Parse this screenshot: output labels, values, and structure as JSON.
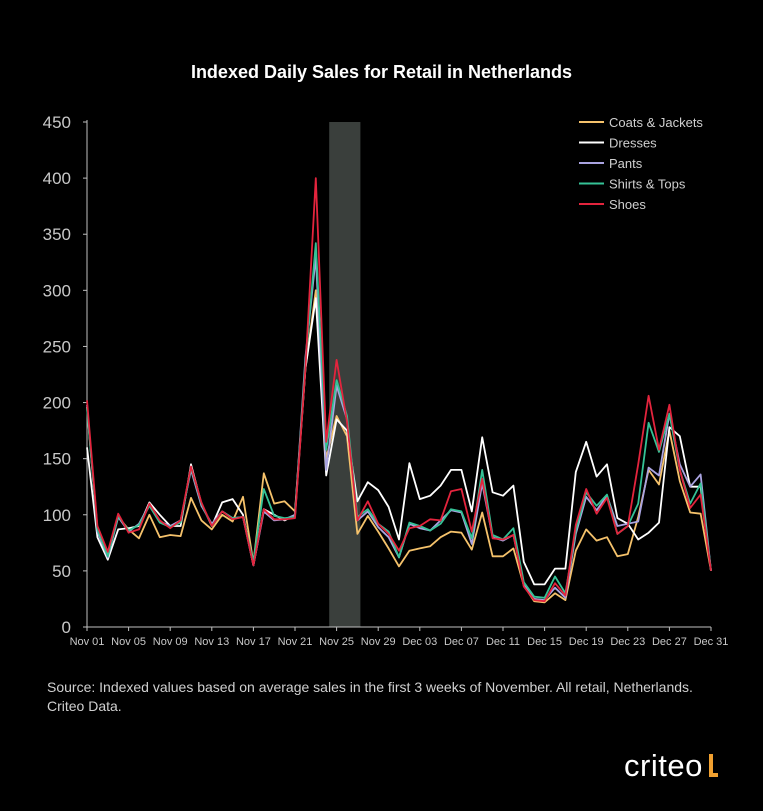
{
  "chart_data": {
    "type": "line",
    "title": "Indexed Daily Sales for Retail in Netherlands",
    "xlabel": "",
    "ylabel": "",
    "ylim": [
      0,
      450
    ],
    "yticks": [
      0,
      50,
      100,
      150,
      200,
      250,
      300,
      350,
      400,
      450
    ],
    "x_tick_labels": [
      "Nov 01",
      "Nov 05",
      "Nov 09",
      "Nov 13",
      "Nov 17",
      "Nov 21",
      "Nov 25",
      "Nov 29",
      "Dec 03",
      "Dec 07",
      "Dec 11",
      "Dec 15",
      "Dec 19",
      "Dec 23",
      "Dec 27",
      "Dec 31"
    ],
    "x_tick_every": 4,
    "x_start": "Nov 01",
    "x_end": "Dec 31",
    "highlight_band": {
      "from": "Nov 24",
      "to": "Nov 27",
      "color": "#3a3f3c"
    },
    "grid": false,
    "legend_position": "top-right",
    "series": [
      {
        "name": "Coats & Jackets",
        "color": "#f5c26b",
        "values": [
          196,
          88,
          65,
          98,
          87,
          79,
          100,
          80,
          82,
          81,
          115,
          95,
          87,
          100,
          94,
          116,
          57,
          137,
          110,
          112,
          103,
          230,
          300,
          150,
          188,
          170,
          83,
          99,
          85,
          70,
          54,
          68,
          70,
          72,
          80,
          85,
          84,
          69,
          102,
          63,
          63,
          70,
          37,
          23,
          22,
          30,
          24,
          68,
          87,
          77,
          80,
          63,
          65,
          98,
          140,
          127,
          175,
          130,
          102,
          101,
          50
        ]
      },
      {
        "name": "Dresses",
        "color": "#ffffff",
        "values": [
          160,
          80,
          60,
          87,
          88,
          90,
          111,
          100,
          90,
          90,
          145,
          110,
          90,
          111,
          114,
          100,
          55,
          105,
          100,
          95,
          100,
          230,
          293,
          135,
          185,
          175,
          112,
          129,
          122,
          107,
          78,
          146,
          114,
          117,
          126,
          140,
          140,
          103,
          169,
          120,
          117,
          126,
          58,
          38,
          38,
          52,
          52,
          138,
          165,
          134,
          145,
          97,
          92,
          78,
          84,
          93,
          178,
          170,
          125,
          125,
          50
        ]
      },
      {
        "name": "Pants",
        "color": "#a9a3e0",
        "values": [
          198,
          85,
          62,
          98,
          85,
          92,
          109,
          94,
          90,
          95,
          140,
          108,
          92,
          103,
          97,
          98,
          55,
          103,
          95,
          96,
          100,
          240,
          330,
          140,
          215,
          185,
          95,
          103,
          89,
          80,
          62,
          92,
          88,
          86,
          95,
          104,
          102,
          74,
          128,
          80,
          77,
          82,
          38,
          25,
          24,
          35,
          26,
          83,
          116,
          104,
          117,
          90,
          92,
          94,
          142,
          135,
          190,
          145,
          125,
          136,
          50
        ]
      },
      {
        "name": "Shirts & Tops",
        "color": "#35c296",
        "values": [
          195,
          87,
          63,
          99,
          86,
          91,
          108,
          93,
          89,
          93,
          142,
          110,
          90,
          103,
          97,
          98,
          58,
          123,
          99,
          97,
          98,
          235,
          342,
          158,
          220,
          188,
          98,
          105,
          92,
          85,
          62,
          93,
          90,
          86,
          92,
          105,
          103,
          79,
          140,
          82,
          78,
          88,
          40,
          27,
          26,
          45,
          30,
          86,
          120,
          108,
          118,
          83,
          90,
          110,
          182,
          156,
          190,
          140,
          110,
          128,
          50
        ]
      },
      {
        "name": "Shoes",
        "color": "#e3243d",
        "values": [
          202,
          90,
          67,
          101,
          84,
          87,
          110,
          95,
          88,
          95,
          143,
          111,
          90,
          103,
          96,
          98,
          55,
          105,
          96,
          96,
          97,
          230,
          400,
          165,
          238,
          183,
          95,
          112,
          92,
          83,
          68,
          88,
          90,
          96,
          95,
          121,
          123,
          85,
          132,
          79,
          78,
          82,
          36,
          24,
          23,
          39,
          28,
          91,
          123,
          101,
          115,
          83,
          90,
          145,
          206,
          158,
          198,
          140,
          106,
          118,
          50
        ]
      }
    ],
    "source_text": "Source: Indexed values based on average sales in the first 3 weeks of November. All retail, Netherlands. Criteo Data.",
    "brand": "criteo"
  }
}
